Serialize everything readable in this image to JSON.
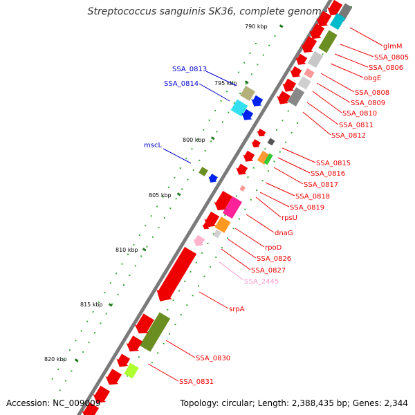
{
  "title": "Streptococcus sanguinis SK36, complete genome",
  "accession": "Accession: NC_009009",
  "topology": "Topology: circular; Length: 2,388,435 bp; Genes: 2,344",
  "colors": {
    "backbone": "#8a8a8a",
    "cds": "#ee0000",
    "label_red": "#ee0000",
    "label_blue": "#0000cc",
    "label_pink": "#ff99cc",
    "tick_major": "#227722",
    "tick_minor": "#33aa33"
  },
  "ruler": [
    {
      "kbp": 790,
      "label": "790 kbp"
    },
    {
      "kbp": 795,
      "label": "795 kbp"
    },
    {
      "kbp": 800,
      "label": "800 kbp"
    },
    {
      "kbp": 805,
      "label": "805 kbp"
    },
    {
      "kbp": 810,
      "label": "810 kbp"
    },
    {
      "kbp": 815,
      "label": "815 kbp"
    },
    {
      "kbp": 820,
      "label": "820 kbp"
    }
  ],
  "gene_labels": [
    {
      "name": "glmM",
      "color": "red"
    },
    {
      "name": "SSA_0805",
      "color": "red"
    },
    {
      "name": "SSA_0806",
      "color": "red"
    },
    {
      "name": "obgE",
      "color": "red"
    },
    {
      "name": "SSA_0808",
      "color": "red"
    },
    {
      "name": "SSA_0809",
      "color": "red"
    },
    {
      "name": "SSA_0810",
      "color": "red"
    },
    {
      "name": "SSA_0811",
      "color": "red"
    },
    {
      "name": "SSA_0812",
      "color": "red"
    },
    {
      "name": "SSA_0813",
      "color": "blue"
    },
    {
      "name": "SSA_0814",
      "color": "blue"
    },
    {
      "name": "mscL",
      "color": "blue"
    },
    {
      "name": "SSA_0815",
      "color": "red"
    },
    {
      "name": "SSA_0816",
      "color": "red"
    },
    {
      "name": "SSA_0817",
      "color": "red"
    },
    {
      "name": "SSA_0818",
      "color": "red"
    },
    {
      "name": "SSA_0819",
      "color": "red"
    },
    {
      "name": "rpsU",
      "color": "red"
    },
    {
      "name": "dnaG",
      "color": "red"
    },
    {
      "name": "rpoD",
      "color": "red"
    },
    {
      "name": "SSA_0826",
      "color": "red"
    },
    {
      "name": "SSA_0827",
      "color": "red"
    },
    {
      "name": "SSA_2445",
      "color": "pink"
    },
    {
      "name": "srpA",
      "color": "red"
    },
    {
      "name": "SSA_0830",
      "color": "red"
    },
    {
      "name": "SSA_0831",
      "color": "red"
    }
  ]
}
